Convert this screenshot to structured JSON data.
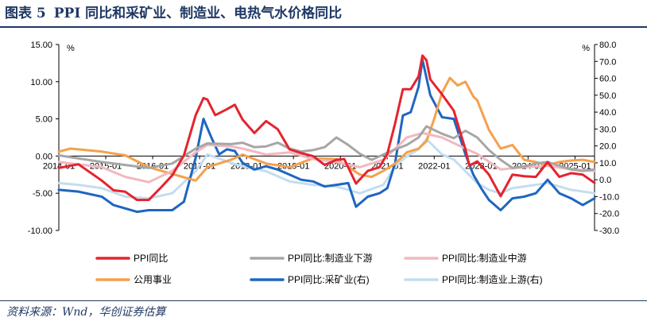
{
  "header": {
    "figure_label": "图表 5",
    "title": "PPI 同比和采矿业、制造业、电热气水价格同比"
  },
  "source": "资料来源：Wnd，华创证券估算",
  "chart_data": {
    "type": "line",
    "title": "",
    "left_axis": {
      "unit": "%",
      "min": -10,
      "max": 15,
      "ticks": [
        "15.00",
        "10.00",
        "5.00",
        "0.00",
        "-5.00",
        "-10.00"
      ]
    },
    "right_axis": {
      "unit": "%",
      "min": -30,
      "max": 80,
      "ticks": [
        "80.0",
        "70.0",
        "60.0",
        "50.0",
        "40.0",
        "30.0",
        "20.0",
        "10.0",
        "0.0",
        "-10.0",
        "-20.0",
        "-30.0"
      ]
    },
    "x_labels": [
      "2014-01",
      "2015-01",
      "2016-01",
      "2017-01",
      "2018-01",
      "2019-01",
      "2020-01",
      "2021-01",
      "2022-01",
      "2023-01",
      "2024-01",
      "2025-01"
    ],
    "x_start": "2014-01",
    "x_end": "2025-06",
    "legend_position": "bottom",
    "series": [
      {
        "name": "PPI同比",
        "axis": "left",
        "color": "#e5232f",
        "width": 3,
        "points": [
          [
            "2014-01",
            -1.6
          ],
          [
            "2014-06",
            -1.1
          ],
          [
            "2014-12",
            -3.3
          ],
          [
            "2015-03",
            -4.6
          ],
          [
            "2015-06",
            -4.8
          ],
          [
            "2015-09",
            -5.9
          ],
          [
            "2015-12",
            -5.9
          ],
          [
            "2016-03",
            -4.3
          ],
          [
            "2016-06",
            -2.6
          ],
          [
            "2016-09",
            0.1
          ],
          [
            "2016-12",
            5.5
          ],
          [
            "2017-02",
            7.8
          ],
          [
            "2017-03",
            7.6
          ],
          [
            "2017-05",
            5.5
          ],
          [
            "2017-08",
            6.3
          ],
          [
            "2017-10",
            6.9
          ],
          [
            "2017-12",
            4.9
          ],
          [
            "2018-03",
            3.1
          ],
          [
            "2018-06",
            4.7
          ],
          [
            "2018-09",
            3.6
          ],
          [
            "2018-12",
            0.9
          ],
          [
            "2019-03",
            0.4
          ],
          [
            "2019-06",
            0.0
          ],
          [
            "2019-09",
            -1.2
          ],
          [
            "2019-12",
            -0.5
          ],
          [
            "2020-02",
            -0.4
          ],
          [
            "2020-05",
            -3.7
          ],
          [
            "2020-08",
            -2.0
          ],
          [
            "2020-11",
            -1.5
          ],
          [
            "2021-01",
            0.3
          ],
          [
            "2021-03",
            4.4
          ],
          [
            "2021-05",
            9.0
          ],
          [
            "2021-07",
            9.0
          ],
          [
            "2021-09",
            10.7
          ],
          [
            "2021-10",
            13.5
          ],
          [
            "2021-11",
            12.9
          ],
          [
            "2021-12",
            10.3
          ],
          [
            "2022-03",
            8.3
          ],
          [
            "2022-06",
            6.1
          ],
          [
            "2022-09",
            0.9
          ],
          [
            "2022-10",
            -1.3
          ],
          [
            "2022-12",
            -0.7
          ],
          [
            "2023-03",
            -2.5
          ],
          [
            "2023-06",
            -5.4
          ],
          [
            "2023-09",
            -2.5
          ],
          [
            "2023-12",
            -2.7
          ],
          [
            "2024-03",
            -2.8
          ],
          [
            "2024-06",
            -0.8
          ],
          [
            "2024-09",
            -2.8
          ],
          [
            "2024-12",
            -2.3
          ],
          [
            "2025-03",
            -2.5
          ],
          [
            "2025-06",
            -3.6
          ]
        ]
      },
      {
        "name": "PPI同比:制造业下游",
        "axis": "left",
        "color": "#a6a6a6",
        "width": 3,
        "points": [
          [
            "2014-01",
            0.1
          ],
          [
            "2014-12",
            -0.8
          ],
          [
            "2015-06",
            -1.2
          ],
          [
            "2015-12",
            -1.6
          ],
          [
            "2016-06",
            -1.0
          ],
          [
            "2016-12",
            1.0
          ],
          [
            "2017-03",
            1.7
          ],
          [
            "2017-09",
            1.6
          ],
          [
            "2017-12",
            1.8
          ],
          [
            "2018-03",
            1.2
          ],
          [
            "2018-06",
            1.3
          ],
          [
            "2018-09",
            1.8
          ],
          [
            "2018-12",
            1.0
          ],
          [
            "2019-03",
            0.6
          ],
          [
            "2019-06",
            0.8
          ],
          [
            "2019-09",
            1.2
          ],
          [
            "2019-12",
            2.5
          ],
          [
            "2020-03",
            1.5
          ],
          [
            "2020-06",
            0.3
          ],
          [
            "2020-09",
            -0.5
          ],
          [
            "2020-12",
            0.2
          ],
          [
            "2021-03",
            0.9
          ],
          [
            "2021-06",
            1.5
          ],
          [
            "2021-09",
            2.5
          ],
          [
            "2021-11",
            4.0
          ],
          [
            "2022-03",
            3.0
          ],
          [
            "2022-06",
            2.4
          ],
          [
            "2022-09",
            3.4
          ],
          [
            "2022-12",
            2.5
          ],
          [
            "2023-03",
            0.8
          ],
          [
            "2023-06",
            -0.5
          ],
          [
            "2023-09",
            -1.6
          ],
          [
            "2023-12",
            -1.4
          ],
          [
            "2024-03",
            -1.0
          ],
          [
            "2024-06",
            -0.8
          ],
          [
            "2024-09",
            -1.3
          ],
          [
            "2024-12",
            -1.8
          ],
          [
            "2025-03",
            -2.0
          ],
          [
            "2025-06",
            -1.8
          ]
        ]
      },
      {
        "name": "PPI同比:制造业中游",
        "axis": "left",
        "color": "#f2b8bf",
        "width": 3,
        "points": [
          [
            "2014-01",
            -0.8
          ],
          [
            "2014-12",
            -1.5
          ],
          [
            "2015-06",
            -2.8
          ],
          [
            "2015-12",
            -3.5
          ],
          [
            "2016-06",
            -2.0
          ],
          [
            "2016-12",
            0.5
          ],
          [
            "2017-03",
            1.5
          ],
          [
            "2017-09",
            1.3
          ],
          [
            "2017-12",
            1.0
          ],
          [
            "2018-06",
            0.2
          ],
          [
            "2018-12",
            0.5
          ],
          [
            "2019-06",
            -0.4
          ],
          [
            "2019-12",
            -0.8
          ],
          [
            "2020-06",
            -1.5
          ],
          [
            "2020-12",
            -0.5
          ],
          [
            "2021-06",
            2.5
          ],
          [
            "2021-10",
            3.1
          ],
          [
            "2022-03",
            2.5
          ],
          [
            "2022-09",
            1.0
          ],
          [
            "2022-12",
            0.3
          ],
          [
            "2023-06",
            -1.8
          ],
          [
            "2023-12",
            -1.5
          ],
          [
            "2024-06",
            -1.3
          ],
          [
            "2024-12",
            -1.8
          ],
          [
            "2025-06",
            -2.0
          ]
        ]
      },
      {
        "name": "公用事业",
        "axis": "left",
        "color": "#f5a04b",
        "width": 3,
        "points": [
          [
            "2014-01",
            0.6
          ],
          [
            "2014-04",
            1.0
          ],
          [
            "2014-12",
            0.6
          ],
          [
            "2015-06",
            0.1
          ],
          [
            "2015-12",
            -1.5
          ],
          [
            "2016-06",
            -2.4
          ],
          [
            "2016-12",
            -3.3
          ],
          [
            "2017-03",
            -1.5
          ],
          [
            "2017-09",
            -0.5
          ],
          [
            "2017-12",
            0.2
          ],
          [
            "2018-06",
            -1.0
          ],
          [
            "2018-12",
            -1.5
          ],
          [
            "2019-06",
            -0.3
          ],
          [
            "2019-12",
            -0.4
          ],
          [
            "2020-06",
            -2.5
          ],
          [
            "2020-09",
            -2.8
          ],
          [
            "2020-12",
            -2.0
          ],
          [
            "2021-03",
            -1.0
          ],
          [
            "2021-06",
            0.5
          ],
          [
            "2021-09",
            1.0
          ],
          [
            "2021-11",
            2.0
          ],
          [
            "2022-01",
            5.0
          ],
          [
            "2022-03",
            8.5
          ],
          [
            "2022-05",
            10.5
          ],
          [
            "2022-07",
            9.5
          ],
          [
            "2022-09",
            10.0
          ],
          [
            "2022-11",
            8.0
          ],
          [
            "2022-12",
            7.5
          ],
          [
            "2023-03",
            3.5
          ],
          [
            "2023-06",
            1.0
          ],
          [
            "2023-09",
            1.5
          ],
          [
            "2023-12",
            -0.5
          ],
          [
            "2024-03",
            -0.8
          ],
          [
            "2024-06",
            -1.2
          ],
          [
            "2024-09",
            -0.8
          ],
          [
            "2024-12",
            -0.6
          ],
          [
            "2025-03",
            -0.5
          ],
          [
            "2025-06",
            -0.8
          ]
        ]
      },
      {
        "name": "PPI同比:采矿业(右)",
        "axis": "right",
        "color": "#1f66c0",
        "width": 3,
        "points": [
          [
            "2014-01",
            -6
          ],
          [
            "2014-06",
            -7
          ],
          [
            "2014-12",
            -10
          ],
          [
            "2015-03",
            -15
          ],
          [
            "2015-06",
            -17
          ],
          [
            "2015-09",
            -19
          ],
          [
            "2015-12",
            -18
          ],
          [
            "2016-03",
            -18
          ],
          [
            "2016-06",
            -18
          ],
          [
            "2016-09",
            -13
          ],
          [
            "2016-12",
            13
          ],
          [
            "2017-02",
            36
          ],
          [
            "2017-04",
            25
          ],
          [
            "2017-06",
            15
          ],
          [
            "2017-08",
            18
          ],
          [
            "2017-10",
            17
          ],
          [
            "2017-12",
            10
          ],
          [
            "2018-03",
            6
          ],
          [
            "2018-06",
            8
          ],
          [
            "2018-09",
            6
          ],
          [
            "2018-12",
            3
          ],
          [
            "2019-03",
            0
          ],
          [
            "2019-06",
            -1
          ],
          [
            "2019-09",
            -4
          ],
          [
            "2019-12",
            -3
          ],
          [
            "2020-03",
            -2
          ],
          [
            "2020-05",
            -16
          ],
          [
            "2020-08",
            -10
          ],
          [
            "2020-11",
            -8
          ],
          [
            "2021-01",
            -5
          ],
          [
            "2021-03",
            10
          ],
          [
            "2021-05",
            38
          ],
          [
            "2021-07",
            40
          ],
          [
            "2021-09",
            55
          ],
          [
            "2021-10",
            71
          ],
          [
            "2021-12",
            50
          ],
          [
            "2022-03",
            37
          ],
          [
            "2022-06",
            36
          ],
          [
            "2022-09",
            15
          ],
          [
            "2022-11",
            3
          ],
          [
            "2023-01",
            -5
          ],
          [
            "2023-03",
            -12
          ],
          [
            "2023-06",
            -18
          ],
          [
            "2023-09",
            -11
          ],
          [
            "2023-12",
            -10
          ],
          [
            "2024-03",
            -8
          ],
          [
            "2024-06",
            0
          ],
          [
            "2024-09",
            -8
          ],
          [
            "2024-12",
            -11
          ],
          [
            "2025-03",
            -15
          ],
          [
            "2025-06",
            -11
          ]
        ]
      },
      {
        "name": "PPI同比:制造业上游(右)",
        "axis": "right",
        "color": "#c3ddef",
        "width": 3,
        "points": [
          [
            "2014-01",
            -2
          ],
          [
            "2014-06",
            -3
          ],
          [
            "2014-12",
            -5
          ],
          [
            "2015-06",
            -10
          ],
          [
            "2015-12",
            -11
          ],
          [
            "2016-06",
            -8
          ],
          [
            "2016-12",
            5
          ],
          [
            "2017-03",
            15
          ],
          [
            "2017-09",
            10
          ],
          [
            "2017-12",
            8
          ],
          [
            "2018-06",
            5
          ],
          [
            "2018-12",
            -1
          ],
          [
            "2019-06",
            -3
          ],
          [
            "2019-12",
            -4
          ],
          [
            "2020-06",
            -8
          ],
          [
            "2020-12",
            -3
          ],
          [
            "2021-03",
            8
          ],
          [
            "2021-06",
            14
          ],
          [
            "2021-09",
            18
          ],
          [
            "2021-11",
            24
          ],
          [
            "2022-03",
            15
          ],
          [
            "2022-06",
            12
          ],
          [
            "2022-09",
            5
          ],
          [
            "2022-12",
            -2
          ],
          [
            "2023-03",
            -6
          ],
          [
            "2023-06",
            -8
          ],
          [
            "2023-09",
            -5
          ],
          [
            "2023-12",
            -4
          ],
          [
            "2024-06",
            -2
          ],
          [
            "2024-12",
            -6
          ],
          [
            "2025-06",
            -8
          ]
        ]
      }
    ]
  }
}
